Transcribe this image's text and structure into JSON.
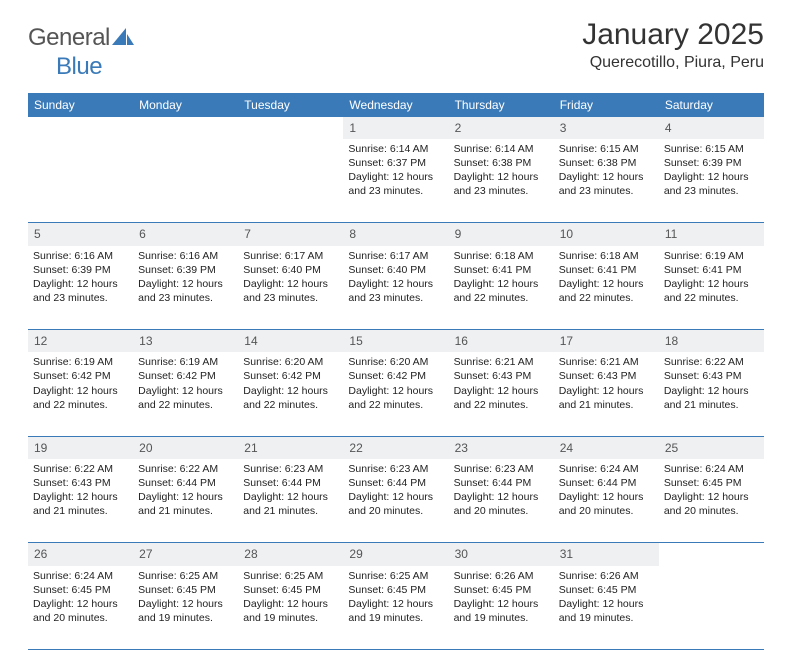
{
  "brand": {
    "name_a": "General",
    "name_b": "Blue"
  },
  "header": {
    "month_title": "January 2025",
    "location": "Querecotillo, Piura, Peru"
  },
  "colors": {
    "accent": "#3b7ab8",
    "daynum_bg": "#eef0f2",
    "text": "#222222",
    "muted": "#555555",
    "white": "#ffffff"
  },
  "weekdays": [
    "Sunday",
    "Monday",
    "Tuesday",
    "Wednesday",
    "Thursday",
    "Friday",
    "Saturday"
  ],
  "weeks": [
    {
      "days": [
        null,
        null,
        null,
        {
          "num": "1",
          "sunrise": "Sunrise: 6:14 AM",
          "sunset": "Sunset: 6:37 PM",
          "day1": "Daylight: 12 hours",
          "day2": "and 23 minutes."
        },
        {
          "num": "2",
          "sunrise": "Sunrise: 6:14 AM",
          "sunset": "Sunset: 6:38 PM",
          "day1": "Daylight: 12 hours",
          "day2": "and 23 minutes."
        },
        {
          "num": "3",
          "sunrise": "Sunrise: 6:15 AM",
          "sunset": "Sunset: 6:38 PM",
          "day1": "Daylight: 12 hours",
          "day2": "and 23 minutes."
        },
        {
          "num": "4",
          "sunrise": "Sunrise: 6:15 AM",
          "sunset": "Sunset: 6:39 PM",
          "day1": "Daylight: 12 hours",
          "day2": "and 23 minutes."
        }
      ]
    },
    {
      "days": [
        {
          "num": "5",
          "sunrise": "Sunrise: 6:16 AM",
          "sunset": "Sunset: 6:39 PM",
          "day1": "Daylight: 12 hours",
          "day2": "and 23 minutes."
        },
        {
          "num": "6",
          "sunrise": "Sunrise: 6:16 AM",
          "sunset": "Sunset: 6:39 PM",
          "day1": "Daylight: 12 hours",
          "day2": "and 23 minutes."
        },
        {
          "num": "7",
          "sunrise": "Sunrise: 6:17 AM",
          "sunset": "Sunset: 6:40 PM",
          "day1": "Daylight: 12 hours",
          "day2": "and 23 minutes."
        },
        {
          "num": "8",
          "sunrise": "Sunrise: 6:17 AM",
          "sunset": "Sunset: 6:40 PM",
          "day1": "Daylight: 12 hours",
          "day2": "and 23 minutes."
        },
        {
          "num": "9",
          "sunrise": "Sunrise: 6:18 AM",
          "sunset": "Sunset: 6:41 PM",
          "day1": "Daylight: 12 hours",
          "day2": "and 22 minutes."
        },
        {
          "num": "10",
          "sunrise": "Sunrise: 6:18 AM",
          "sunset": "Sunset: 6:41 PM",
          "day1": "Daylight: 12 hours",
          "day2": "and 22 minutes."
        },
        {
          "num": "11",
          "sunrise": "Sunrise: 6:19 AM",
          "sunset": "Sunset: 6:41 PM",
          "day1": "Daylight: 12 hours",
          "day2": "and 22 minutes."
        }
      ]
    },
    {
      "days": [
        {
          "num": "12",
          "sunrise": "Sunrise: 6:19 AM",
          "sunset": "Sunset: 6:42 PM",
          "day1": "Daylight: 12 hours",
          "day2": "and 22 minutes."
        },
        {
          "num": "13",
          "sunrise": "Sunrise: 6:19 AM",
          "sunset": "Sunset: 6:42 PM",
          "day1": "Daylight: 12 hours",
          "day2": "and 22 minutes."
        },
        {
          "num": "14",
          "sunrise": "Sunrise: 6:20 AM",
          "sunset": "Sunset: 6:42 PM",
          "day1": "Daylight: 12 hours",
          "day2": "and 22 minutes."
        },
        {
          "num": "15",
          "sunrise": "Sunrise: 6:20 AM",
          "sunset": "Sunset: 6:42 PM",
          "day1": "Daylight: 12 hours",
          "day2": "and 22 minutes."
        },
        {
          "num": "16",
          "sunrise": "Sunrise: 6:21 AM",
          "sunset": "Sunset: 6:43 PM",
          "day1": "Daylight: 12 hours",
          "day2": "and 22 minutes."
        },
        {
          "num": "17",
          "sunrise": "Sunrise: 6:21 AM",
          "sunset": "Sunset: 6:43 PM",
          "day1": "Daylight: 12 hours",
          "day2": "and 21 minutes."
        },
        {
          "num": "18",
          "sunrise": "Sunrise: 6:22 AM",
          "sunset": "Sunset: 6:43 PM",
          "day1": "Daylight: 12 hours",
          "day2": "and 21 minutes."
        }
      ]
    },
    {
      "days": [
        {
          "num": "19",
          "sunrise": "Sunrise: 6:22 AM",
          "sunset": "Sunset: 6:43 PM",
          "day1": "Daylight: 12 hours",
          "day2": "and 21 minutes."
        },
        {
          "num": "20",
          "sunrise": "Sunrise: 6:22 AM",
          "sunset": "Sunset: 6:44 PM",
          "day1": "Daylight: 12 hours",
          "day2": "and 21 minutes."
        },
        {
          "num": "21",
          "sunrise": "Sunrise: 6:23 AM",
          "sunset": "Sunset: 6:44 PM",
          "day1": "Daylight: 12 hours",
          "day2": "and 21 minutes."
        },
        {
          "num": "22",
          "sunrise": "Sunrise: 6:23 AM",
          "sunset": "Sunset: 6:44 PM",
          "day1": "Daylight: 12 hours",
          "day2": "and 20 minutes."
        },
        {
          "num": "23",
          "sunrise": "Sunrise: 6:23 AM",
          "sunset": "Sunset: 6:44 PM",
          "day1": "Daylight: 12 hours",
          "day2": "and 20 minutes."
        },
        {
          "num": "24",
          "sunrise": "Sunrise: 6:24 AM",
          "sunset": "Sunset: 6:44 PM",
          "day1": "Daylight: 12 hours",
          "day2": "and 20 minutes."
        },
        {
          "num": "25",
          "sunrise": "Sunrise: 6:24 AM",
          "sunset": "Sunset: 6:45 PM",
          "day1": "Daylight: 12 hours",
          "day2": "and 20 minutes."
        }
      ]
    },
    {
      "days": [
        {
          "num": "26",
          "sunrise": "Sunrise: 6:24 AM",
          "sunset": "Sunset: 6:45 PM",
          "day1": "Daylight: 12 hours",
          "day2": "and 20 minutes."
        },
        {
          "num": "27",
          "sunrise": "Sunrise: 6:25 AM",
          "sunset": "Sunset: 6:45 PM",
          "day1": "Daylight: 12 hours",
          "day2": "and 19 minutes."
        },
        {
          "num": "28",
          "sunrise": "Sunrise: 6:25 AM",
          "sunset": "Sunset: 6:45 PM",
          "day1": "Daylight: 12 hours",
          "day2": "and 19 minutes."
        },
        {
          "num": "29",
          "sunrise": "Sunrise: 6:25 AM",
          "sunset": "Sunset: 6:45 PM",
          "day1": "Daylight: 12 hours",
          "day2": "and 19 minutes."
        },
        {
          "num": "30",
          "sunrise": "Sunrise: 6:26 AM",
          "sunset": "Sunset: 6:45 PM",
          "day1": "Daylight: 12 hours",
          "day2": "and 19 minutes."
        },
        {
          "num": "31",
          "sunrise": "Sunrise: 6:26 AM",
          "sunset": "Sunset: 6:45 PM",
          "day1": "Daylight: 12 hours",
          "day2": "and 19 minutes."
        },
        null
      ]
    }
  ]
}
